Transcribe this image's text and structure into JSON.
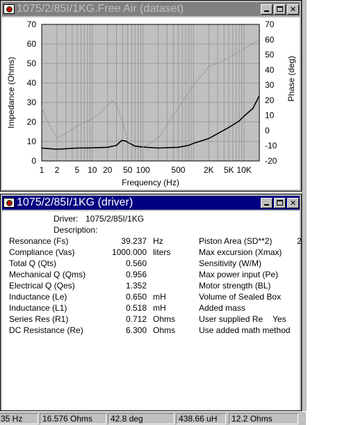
{
  "graph_window": {
    "title": "1075/2/85I/1KG.Free Air (dataset)"
  },
  "chart_data": {
    "type": "line",
    "xlabel": "Frequency (Hz)",
    "ylabel": "Impedance (Ohms)",
    "y2label": "Phase (deg)",
    "x_scale": "log",
    "xlim": [
      1,
      20000
    ],
    "ylim": [
      0,
      70
    ],
    "y2lim": [
      -20,
      70
    ],
    "x_tick_values": [
      1,
      2,
      5,
      10,
      20,
      50,
      100,
      500,
      2000,
      5000,
      10000
    ],
    "x_tick_labels": [
      "1",
      "2",
      "5",
      "10",
      "20",
      "50",
      "100",
      "500",
      "2K",
      "5K",
      "10K"
    ],
    "y_tick_labels": [
      "0",
      "10",
      "20",
      "30",
      "40",
      "50",
      "60",
      "70"
    ],
    "y2_tick_labels": [
      "-20",
      "-10",
      "0",
      "10",
      "20",
      "30",
      "40",
      "50",
      "60",
      "70"
    ],
    "grid": true,
    "colors": {
      "plot_bg": "#c0c0c0",
      "grid": "#9a9a9a",
      "impedance": "#000000",
      "phase": "#808080"
    },
    "series": [
      {
        "quantity": "impedance",
        "axis": "left",
        "x": [
          1,
          1.5,
          2,
          3,
          5,
          10,
          20,
          30,
          38,
          45,
          52,
          70,
          100,
          200,
          500,
          800,
          1000,
          2000,
          3000,
          5000,
          8000,
          10000,
          15000,
          20000
        ],
        "y": [
          6.6,
          6.2,
          6.0,
          6.3,
          6.6,
          6.7,
          7.0,
          8.0,
          10.5,
          10.3,
          9.3,
          7.6,
          7.1,
          6.6,
          7.0,
          8.0,
          9.0,
          11.5,
          14.0,
          17.2,
          20.5,
          23.0,
          27.0,
          33.5
        ]
      },
      {
        "quantity": "phase",
        "axis": "right",
        "x": [
          1,
          1.5,
          2,
          3,
          5,
          10,
          15,
          20,
          25,
          30,
          40,
          50,
          70,
          100,
          200,
          500,
          1000,
          2000,
          5000,
          10000,
          20000
        ],
        "y": [
          15,
          2,
          -5,
          -2,
          3,
          8,
          12,
          17,
          20,
          17,
          5,
          -7,
          -12,
          -11,
          -5,
          15,
          30,
          42,
          48,
          54,
          60
        ]
      }
    ]
  },
  "driver_window": {
    "title": "1075/2/85I/1KG (driver)",
    "driver_label": "Driver:",
    "driver_value": "1075/2/85I/1KG",
    "description_label": "Description:",
    "params": [
      {
        "label": "Resonance (Fs)",
        "value": "39.237",
        "unit": "Hz"
      },
      {
        "label": "Compliance (Vas)",
        "value": "1000.000",
        "unit": "liters"
      },
      {
        "label": "Total Q (Qts)",
        "value": "0.560",
        "unit": ""
      },
      {
        "label": "Mechanical Q (Qms)",
        "value": "0.956",
        "unit": ""
      },
      {
        "label": "Electrical Q (Qes)",
        "value": "1.352",
        "unit": ""
      },
      {
        "label": "Inductance (Le)",
        "value": "0.650",
        "unit": "mH"
      },
      {
        "label": "Inductance (L1)",
        "value": "0.518",
        "unit": "mH"
      },
      {
        "label": "Series Res (R1)",
        "value": "0.712",
        "unit": "Ohms"
      },
      {
        "label": "DC Resistance (Re)",
        "value": "6.300",
        "unit": "Ohms"
      }
    ],
    "right_params": [
      {
        "label": "Piston Area (SD**2)",
        "value": "2"
      },
      {
        "label": "Max excursion (Xmax)",
        "value": ""
      },
      {
        "label": "Sensitivity (W/M)",
        "value": ""
      },
      {
        "label": "Max power input (Pe)",
        "value": ""
      },
      {
        "label": "Motor strength (BL)",
        "value": ""
      },
      {
        "label": "Volume of Sealed Box",
        "value": ""
      },
      {
        "label": "Added mass",
        "value": ""
      },
      {
        "label": "User supplied Re",
        "value": "Yes"
      },
      {
        "label": "Use added math method",
        "value": ""
      }
    ]
  },
  "status_bar": {
    "freq": "35 Hz",
    "impedance": "16.576 Ohms",
    "phase": "42.8 deg",
    "inductance": "438.66 uH",
    "ohms": "12.2 Ohms"
  }
}
